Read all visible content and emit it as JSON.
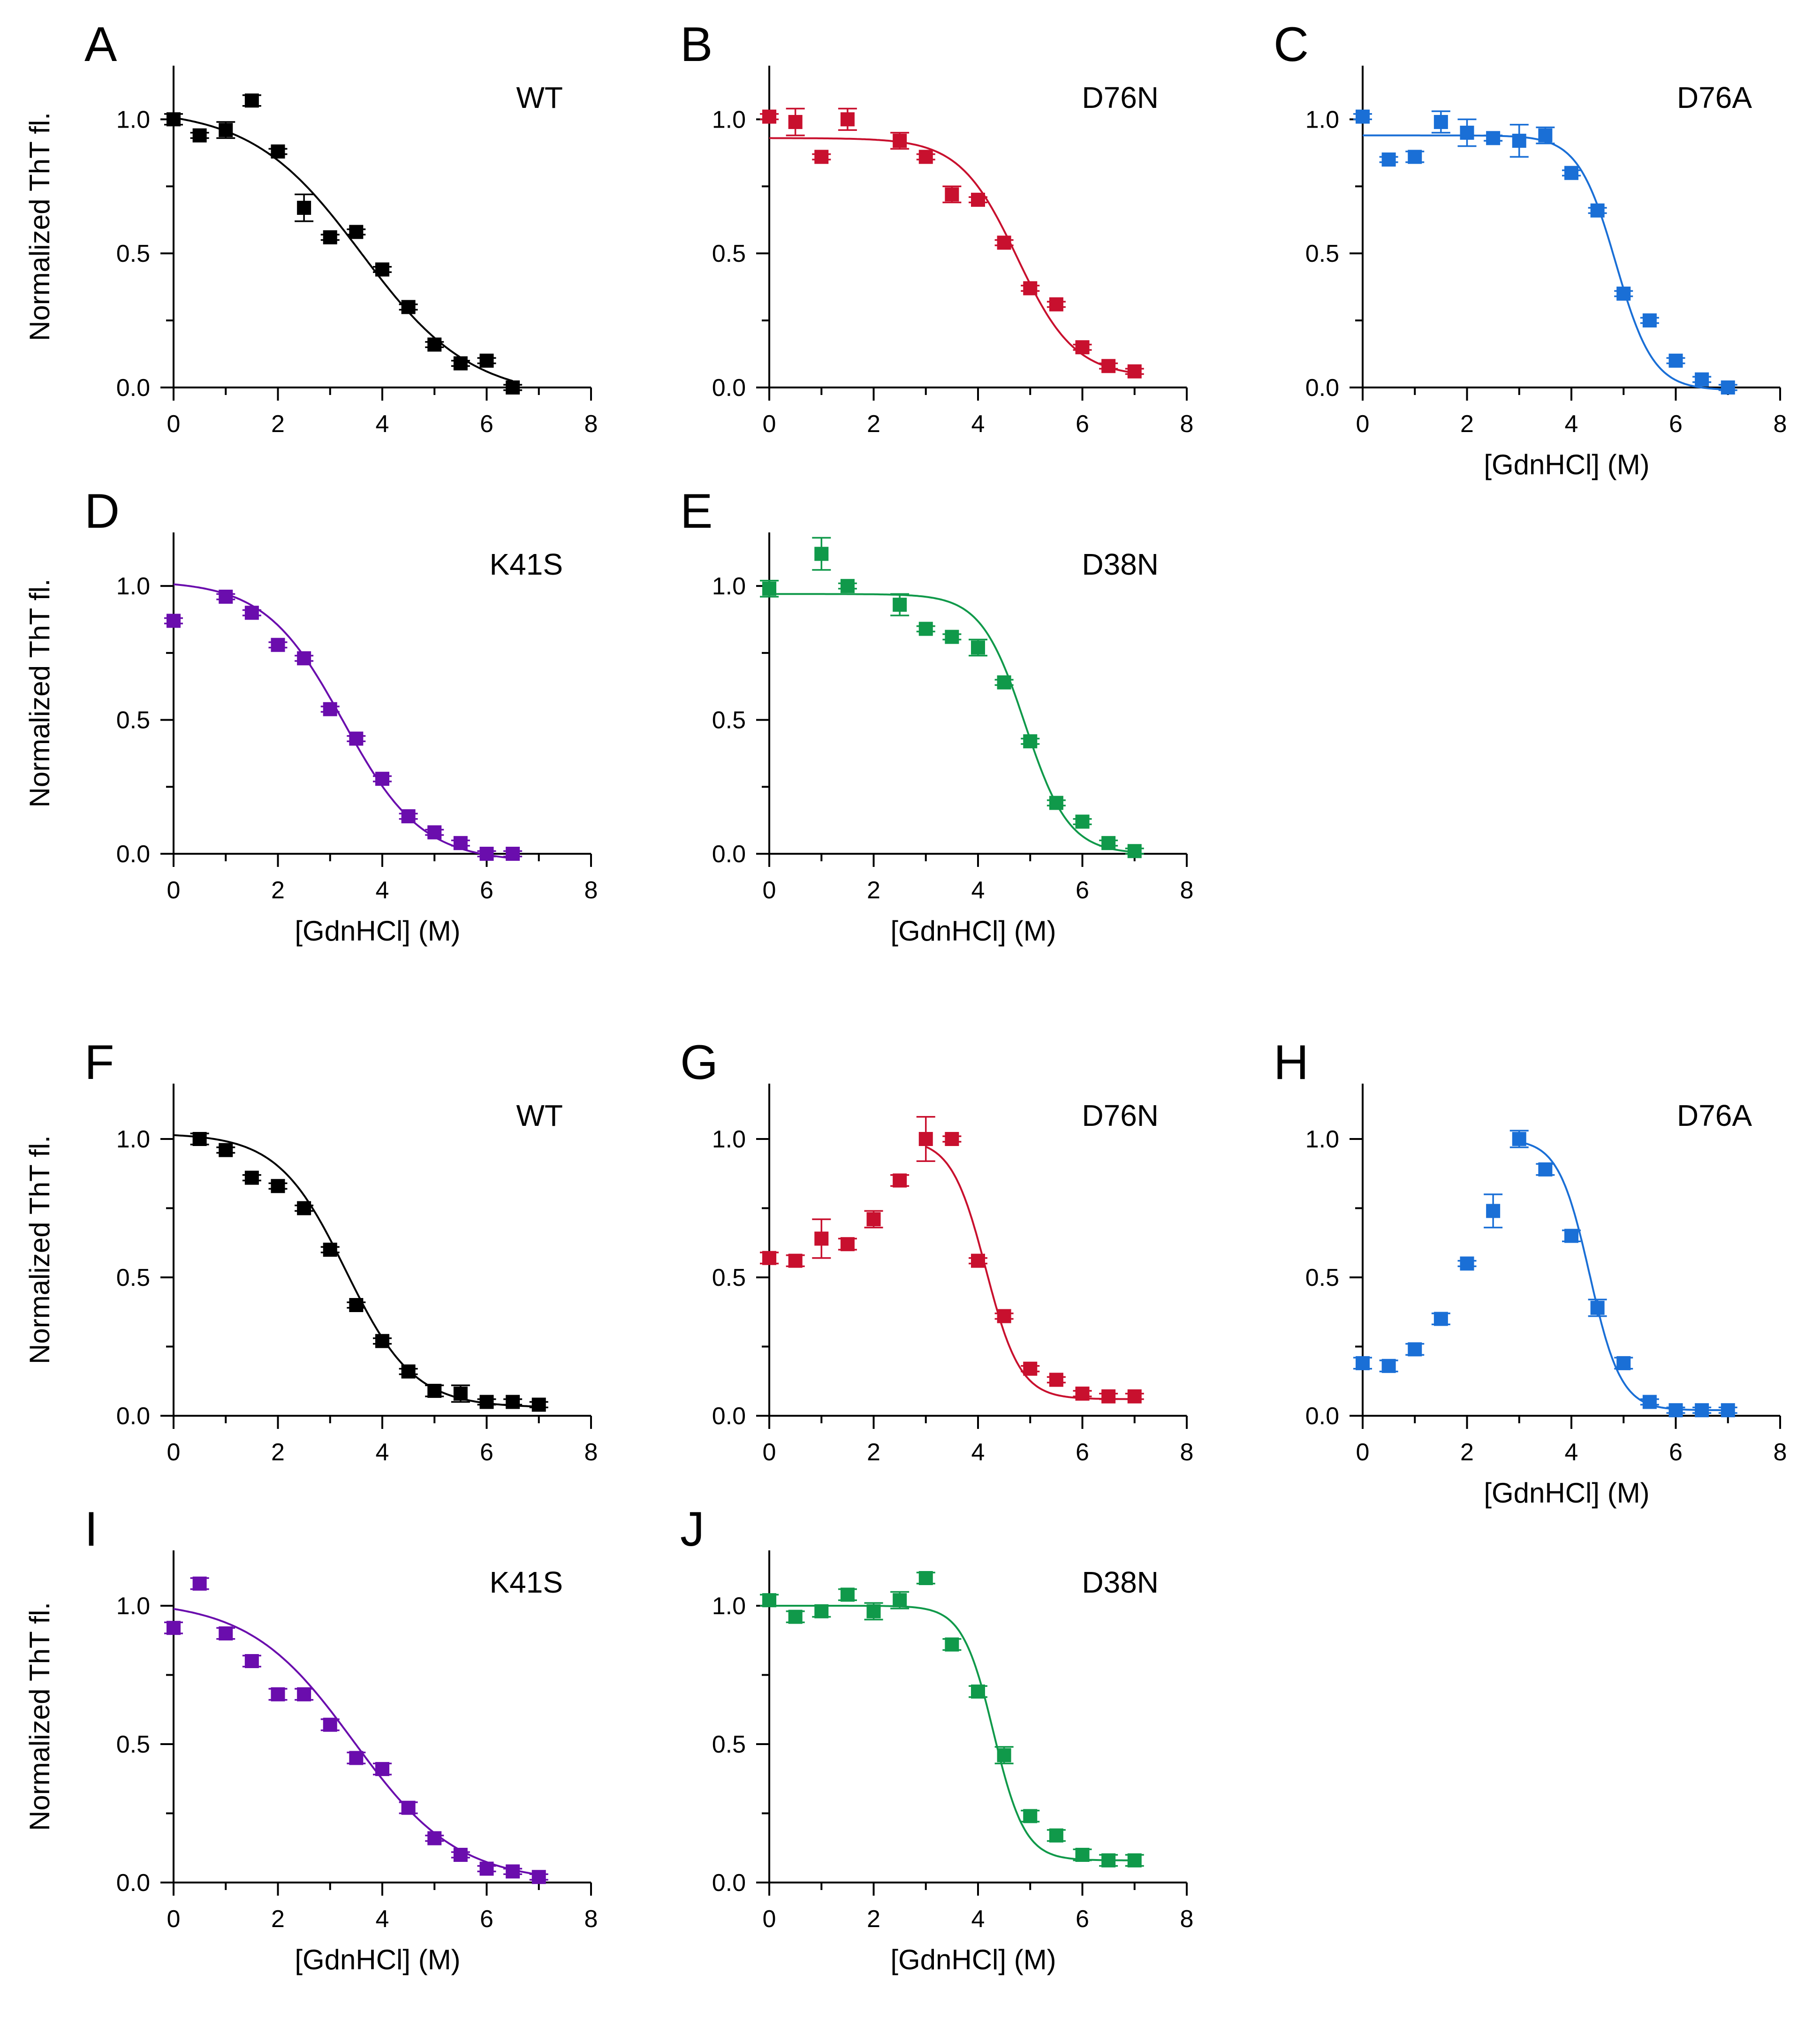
{
  "colors": {
    "WT": "#000000",
    "D76N": "#c8102e",
    "D76A": "#1a6fd6",
    "K41S": "#6a0dad",
    "D38N": "#10994a"
  },
  "chart_data": [
    {
      "panel": "A",
      "type": "scatter",
      "label": "WT",
      "color_key": "WT",
      "xlabel": "",
      "ylabel": "Normalized ThT fl.",
      "xlim": [
        0,
        8
      ],
      "ylim": [
        0,
        1.2
      ],
      "xticks": [
        "0",
        "2",
        "4",
        "6",
        "8"
      ],
      "yticks": [
        "0.0",
        "0.5",
        "1.0"
      ],
      "x": [
        0,
        0.5,
        1,
        1.5,
        2,
        2.5,
        3,
        3.5,
        4,
        4.5,
        5,
        5.5,
        6,
        6.5
      ],
      "y": [
        1.0,
        0.94,
        0.96,
        1.07,
        0.88,
        0.67,
        0.56,
        0.58,
        0.44,
        0.3,
        0.16,
        0.09,
        0.1,
        0.0
      ],
      "err": [
        0.02,
        0.01,
        0.03,
        0.02,
        0.01,
        0.05,
        0.01,
        0.01,
        0.01,
        0.01,
        0.01,
        0.01,
        0.01,
        0.01
      ],
      "fit": {
        "top": 1.04,
        "bottom": -0.04,
        "mid": 3.6,
        "slope": 1.05
      }
    },
    {
      "panel": "B",
      "type": "scatter",
      "label": "D76N",
      "color_key": "D76N",
      "xlabel": "",
      "ylabel": "",
      "xlim": [
        0,
        8
      ],
      "ylim": [
        0,
        1.2
      ],
      "xticks": [
        "0",
        "2",
        "4",
        "6",
        "8"
      ],
      "yticks": [
        "0.0",
        "0.5",
        "1.0"
      ],
      "x": [
        0,
        0.5,
        1,
        1.5,
        2.5,
        3,
        3.5,
        4,
        4.5,
        5,
        5.5,
        6,
        6.5,
        7
      ],
      "y": [
        1.01,
        0.99,
        0.86,
        1.0,
        0.92,
        0.86,
        0.72,
        0.7,
        0.54,
        0.37,
        0.31,
        0.15,
        0.08,
        0.06
      ],
      "err": [
        0.01,
        0.05,
        0.01,
        0.04,
        0.03,
        0.01,
        0.03,
        0.01,
        0.01,
        0.01,
        0.01,
        0.01,
        0.01,
        0.01
      ],
      "fit": {
        "top": 0.93,
        "bottom": 0.04,
        "mid": 4.75,
        "slope": 0.55
      }
    },
    {
      "panel": "C",
      "type": "scatter",
      "label": "D76A",
      "color_key": "D76A",
      "xlabel": "[GdnHCl] (M)",
      "ylabel": "",
      "xlim": [
        0,
        8
      ],
      "ylim": [
        0,
        1.2
      ],
      "xticks": [
        "0",
        "2",
        "4",
        "6",
        "8"
      ],
      "yticks": [
        "0.0",
        "0.5",
        "1.0"
      ],
      "x": [
        0,
        0.5,
        1,
        1.5,
        2,
        2.5,
        3,
        3.5,
        4,
        4.5,
        5,
        5.5,
        6,
        6.5,
        7
      ],
      "y": [
        1.01,
        0.85,
        0.86,
        0.99,
        0.95,
        0.93,
        0.92,
        0.94,
        0.8,
        0.66,
        0.35,
        0.25,
        0.1,
        0.03,
        0.0
      ],
      "err": [
        0.01,
        0.01,
        0.02,
        0.04,
        0.05,
        0.01,
        0.06,
        0.03,
        0.01,
        0.01,
        0.01,
        0.01,
        0.01,
        0.01,
        0.01
      ],
      "fit": {
        "top": 0.94,
        "bottom": -0.01,
        "mid": 4.85,
        "slope": 0.36
      }
    },
    {
      "panel": "D",
      "type": "scatter",
      "label": "K41S",
      "color_key": "K41S",
      "xlabel": "[GdnHCl] (M)",
      "ylabel": "Normalized ThT fl.",
      "xlim": [
        0,
        8
      ],
      "ylim": [
        0,
        1.2
      ],
      "xticks": [
        "0",
        "2",
        "4",
        "6",
        "8"
      ],
      "yticks": [
        "0.0",
        "0.5",
        "1.0"
      ],
      "x": [
        0,
        1,
        1.5,
        2,
        2.5,
        3,
        3.5,
        4,
        4.5,
        5,
        5.5,
        6,
        6.5
      ],
      "y": [
        0.87,
        0.96,
        0.9,
        0.78,
        0.73,
        0.54,
        0.43,
        0.28,
        0.14,
        0.08,
        0.04,
        0.0,
        0.0
      ],
      "err": [
        0.01,
        0.01,
        0.01,
        0.01,
        0.01,
        0.01,
        0.01,
        0.01,
        0.01,
        0.01,
        0.01,
        0.01,
        0.01
      ],
      "fit": {
        "top": 1.02,
        "bottom": -0.03,
        "mid": 3.25,
        "slope": 0.75
      }
    },
    {
      "panel": "E",
      "type": "scatter",
      "label": "D38N",
      "color_key": "D38N",
      "xlabel": "[GdnHCl] (M)",
      "ylabel": "",
      "xlim": [
        0,
        8
      ],
      "ylim": [
        0,
        1.2
      ],
      "xticks": [
        "0",
        "2",
        "4",
        "6",
        "8"
      ],
      "yticks": [
        "0.0",
        "0.5",
        "1.0"
      ],
      "x": [
        0,
        1,
        1.5,
        2.5,
        3,
        3.5,
        4,
        4.5,
        5,
        5.5,
        6,
        6.5,
        7
      ],
      "y": [
        0.99,
        1.12,
        1.0,
        0.93,
        0.84,
        0.81,
        0.77,
        0.64,
        0.42,
        0.19,
        0.12,
        0.04,
        0.01
      ],
      "err": [
        0.03,
        0.06,
        0.01,
        0.04,
        0.01,
        0.01,
        0.03,
        0.01,
        0.01,
        0.01,
        0.01,
        0.01,
        0.01
      ],
      "fit": {
        "top": 0.97,
        "bottom": 0.0,
        "mid": 4.9,
        "slope": 0.42
      }
    },
    {
      "panel": "F",
      "type": "scatter",
      "label": "WT",
      "color_key": "WT",
      "xlabel": "",
      "ylabel": "Normalized ThT fl.",
      "xlim": [
        0,
        8
      ],
      "ylim": [
        0,
        1.2
      ],
      "xticks": [
        "0",
        "2",
        "4",
        "6",
        "8"
      ],
      "yticks": [
        "0.0",
        "0.5",
        "1.0"
      ],
      "x": [
        0.5,
        1,
        1.5,
        2,
        2.5,
        3,
        3.5,
        4,
        4.5,
        5,
        5.5,
        6,
        6.5,
        7
      ],
      "y": [
        1.0,
        0.96,
        0.86,
        0.83,
        0.75,
        0.6,
        0.4,
        0.27,
        0.16,
        0.09,
        0.08,
        0.05,
        0.05,
        0.04
      ],
      "err": [
        0.02,
        0.01,
        0.01,
        0.01,
        0.01,
        0.01,
        0.01,
        0.01,
        0.01,
        0.02,
        0.03,
        0.01,
        0.01,
        0.01
      ],
      "fit": {
        "top": 1.02,
        "bottom": 0.03,
        "mid": 3.3,
        "slope": 0.65
      }
    },
    {
      "panel": "G",
      "type": "scatter",
      "label": "D76N",
      "color_key": "D76N",
      "xlabel": "",
      "ylabel": "",
      "xlim": [
        0,
        8
      ],
      "ylim": [
        0,
        1.2
      ],
      "xticks": [
        "0",
        "2",
        "4",
        "6",
        "8"
      ],
      "yticks": [
        "0.0",
        "0.5",
        "1.0"
      ],
      "x": [
        0,
        0.5,
        1,
        1.5,
        2,
        2.5,
        3,
        3.5,
        4,
        4.5,
        5,
        5.5,
        6,
        6.5,
        7
      ],
      "y": [
        0.57,
        0.56,
        0.64,
        0.62,
        0.71,
        0.85,
        1.0,
        1.0,
        0.56,
        0.36,
        0.17,
        0.13,
        0.08,
        0.07,
        0.07
      ],
      "err": [
        0.02,
        0.02,
        0.07,
        0.02,
        0.03,
        0.02,
        0.08,
        0.01,
        0.01,
        0.01,
        0.01,
        0.01,
        0.01,
        0.01,
        0.01
      ],
      "fit": {
        "top": 1.0,
        "bottom": 0.06,
        "mid": 4.15,
        "slope": 0.33,
        "start": 3.0
      }
    },
    {
      "panel": "H",
      "type": "scatter",
      "label": "D76A",
      "color_key": "D76A",
      "xlabel": "[GdnHCl] (M)",
      "ylabel": "",
      "xlim": [
        0,
        8
      ],
      "ylim": [
        0,
        1.2
      ],
      "xticks": [
        "0",
        "2",
        "4",
        "6",
        "8"
      ],
      "yticks": [
        "0.0",
        "0.5",
        "1.0"
      ],
      "x": [
        0,
        0.5,
        1,
        1.5,
        2,
        2.5,
        3,
        3.5,
        4,
        4.5,
        5,
        5.5,
        6,
        6.5,
        7
      ],
      "y": [
        0.19,
        0.18,
        0.24,
        0.35,
        0.55,
        0.74,
        1.0,
        0.89,
        0.65,
        0.39,
        0.19,
        0.05,
        0.02,
        0.02,
        0.02
      ],
      "err": [
        0.02,
        0.02,
        0.02,
        0.02,
        0.01,
        0.06,
        0.03,
        0.02,
        0.02,
        0.03,
        0.02,
        0.01,
        0.01,
        0.01,
        0.01
      ],
      "fit": {
        "top": 1.0,
        "bottom": 0.02,
        "mid": 4.35,
        "slope": 0.3,
        "start": 3.0
      }
    },
    {
      "panel": "I",
      "type": "scatter",
      "label": "K41S",
      "color_key": "K41S",
      "xlabel": "[GdnHCl] (M)",
      "ylabel": "Normalized ThT fl.",
      "xlim": [
        0,
        8
      ],
      "ylim": [
        0,
        1.2
      ],
      "xticks": [
        "0",
        "2",
        "4",
        "6",
        "8"
      ],
      "yticks": [
        "0.0",
        "0.5",
        "1.0"
      ],
      "x": [
        0,
        0.5,
        1,
        1.5,
        2,
        2.5,
        3,
        3.5,
        4,
        4.5,
        5,
        5.5,
        6,
        6.5,
        7
      ],
      "y": [
        0.92,
        1.08,
        0.9,
        0.8,
        0.68,
        0.68,
        0.57,
        0.45,
        0.41,
        0.27,
        0.16,
        0.1,
        0.05,
        0.04,
        0.02
      ],
      "err": [
        0.02,
        0.02,
        0.02,
        0.02,
        0.02,
        0.02,
        0.02,
        0.02,
        0.02,
        0.02,
        0.01,
        0.01,
        0.01,
        0.01,
        0.01
      ],
      "fit": {
        "top": 1.02,
        "bottom": 0.0,
        "mid": 3.45,
        "slope": 1.0
      }
    },
    {
      "panel": "J",
      "type": "scatter",
      "label": "D38N",
      "color_key": "D38N",
      "xlabel": "[GdnHCl] (M)",
      "ylabel": "",
      "xlim": [
        0,
        8
      ],
      "ylim": [
        0,
        1.2
      ],
      "xticks": [
        "0",
        "2",
        "4",
        "6",
        "8"
      ],
      "yticks": [
        "0.0",
        "0.5",
        "1.0"
      ],
      "x": [
        0,
        0.5,
        1,
        1.5,
        2,
        2.5,
        3,
        3.5,
        4,
        4.5,
        5,
        5.5,
        6,
        6.5,
        7
      ],
      "y": [
        1.02,
        0.96,
        0.98,
        1.04,
        0.98,
        1.02,
        1.1,
        0.86,
        0.69,
        0.46,
        0.24,
        0.17,
        0.1,
        0.08,
        0.08
      ],
      "err": [
        0.02,
        0.02,
        0.02,
        0.02,
        0.03,
        0.03,
        0.02,
        0.02,
        0.02,
        0.03,
        0.02,
        0.02,
        0.02,
        0.02,
        0.02
      ],
      "fit": {
        "top": 1.0,
        "bottom": 0.08,
        "mid": 4.3,
        "slope": 0.3
      }
    }
  ]
}
